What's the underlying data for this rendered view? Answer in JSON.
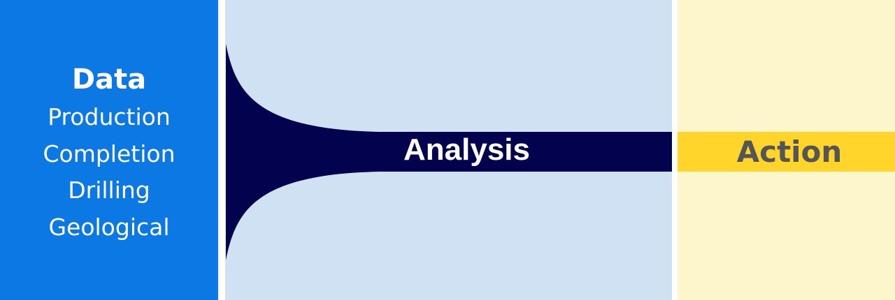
{
  "data_panel": {
    "title": "Data",
    "items": [
      "Production",
      "Completion",
      "Drilling",
      "Geological"
    ]
  },
  "analysis": {
    "label": "Analysis"
  },
  "action": {
    "label": "Action"
  },
  "colors": {
    "data_panel": "#0b78e3",
    "analysis_panel": "#cfe1f3",
    "action_panel": "#fdf5cc",
    "funnel": "#02024f",
    "action_bar": "#ffd52b",
    "action_text": "#555555",
    "text_light": "#ffffff"
  }
}
